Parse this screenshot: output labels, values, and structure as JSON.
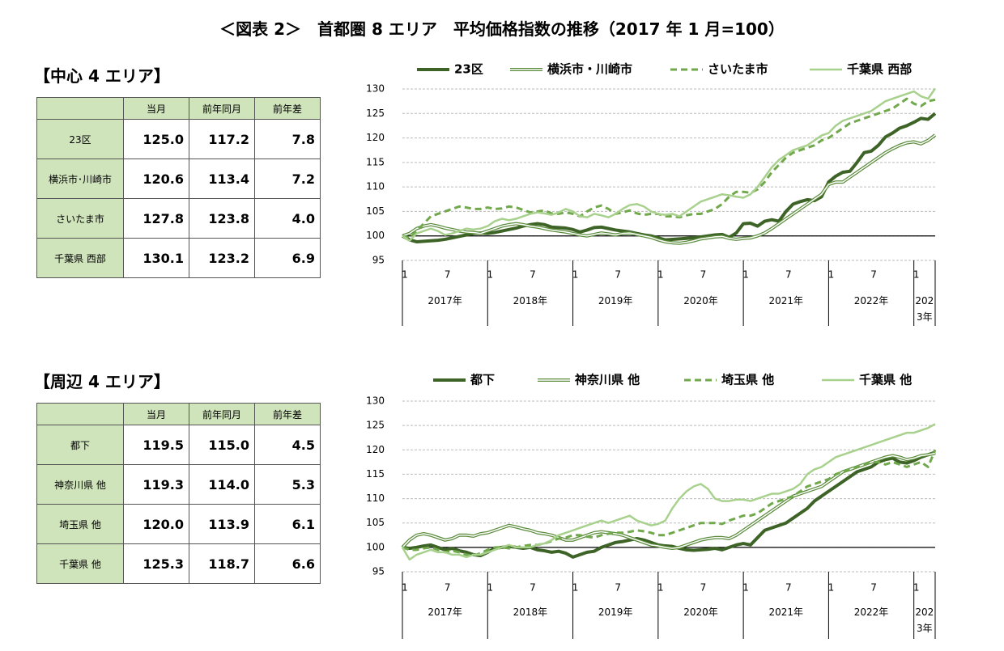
{
  "title": "＜図表 2＞　首都圏 8 エリア　平均価格指数の推移（2017 年 1 月=100）",
  "tables": [
    {
      "heading": "【中心 4 エリア】",
      "columns": [
        "当月",
        "前年同月",
        "前年差"
      ],
      "rows": [
        [
          "23区",
          "125.0",
          "117.2",
          "7.8"
        ],
        [
          "横浜市･川崎市",
          "120.6",
          "113.4",
          "7.2"
        ],
        [
          "さいたま市",
          "127.8",
          "123.8",
          "4.0"
        ],
        [
          "千葉県 西部",
          "130.1",
          "123.2",
          "6.9"
        ]
      ]
    },
    {
      "heading": "【周辺 4 エリア】",
      "columns": [
        "当月",
        "前年同月",
        "前年差"
      ],
      "rows": [
        [
          "都下",
          "119.5",
          "115.0",
          "4.5"
        ],
        [
          "神奈川県 他",
          "119.3",
          "114.0",
          "5.3"
        ],
        [
          "埼玉県 他",
          "120.0",
          "113.9",
          "6.1"
        ],
        [
          "千葉県 他",
          "125.3",
          "118.7",
          "6.6"
        ]
      ]
    }
  ],
  "chart_data": [
    {
      "type": "line",
      "ylim": [
        95,
        130
      ],
      "yticks": [
        95,
        100,
        105,
        110,
        115,
        120,
        125,
        130
      ],
      "grid": true,
      "baseline": 100,
      "categories": [
        "1",
        null,
        null,
        null,
        null,
        null,
        "7",
        null,
        null,
        null,
        null,
        null,
        "1",
        null,
        null,
        null,
        null,
        null,
        "7",
        null,
        null,
        null,
        null,
        null,
        "1",
        null,
        null,
        null,
        null,
        null,
        "7",
        null,
        null,
        null,
        null,
        null,
        "1",
        null,
        null,
        null,
        null,
        null,
        "7",
        null,
        null,
        null,
        null,
        null,
        "1",
        null,
        null,
        null,
        null,
        null,
        "7",
        null,
        null,
        null,
        null,
        null,
        "1",
        null,
        null,
        null,
        null,
        null,
        "7",
        null,
        null,
        null,
        null,
        null,
        "1",
        null,
        null,
        null
      ],
      "year_labels": [
        "2017年",
        "2018年",
        "2019年",
        "2020年",
        "2021年",
        "2022年",
        "2023年"
      ],
      "series": [
        {
          "name": "23区",
          "color": "#3d6326",
          "style": "solid",
          "values": [
            100,
            99.2,
            98.8,
            98.9,
            99.0,
            99.1,
            99.3,
            99.6,
            99.9,
            100.2,
            100.5,
            100.6,
            100.5,
            100.7,
            101.0,
            101.3,
            101.6,
            102.0,
            102.3,
            102.5,
            102.3,
            101.8,
            101.7,
            101.6,
            101.3,
            100.8,
            101.2,
            101.7,
            101.8,
            101.5,
            101.2,
            101.0,
            100.8,
            100.5,
            100.2,
            100.0,
            99.6,
            99.2,
            99.3,
            99.4,
            99.5,
            99.6,
            99.8,
            100.0,
            100.2,
            100.3,
            99.7,
            100.6,
            102.5,
            102.6,
            102.0,
            103.0,
            103.3,
            103.0,
            105.0,
            106.5,
            107.0,
            107.4,
            107.2,
            108.0,
            111.0,
            112.2,
            113.0,
            113.2,
            115.0,
            117.0,
            117.3,
            118.5,
            120.2,
            121.0,
            122.0,
            122.5,
            123.2,
            124.0,
            123.8,
            125.0
          ]
        },
        {
          "name": "横浜市・川崎市",
          "color": "#5b8c3c",
          "style": "double",
          "values": [
            100,
            100.5,
            101.5,
            102,
            102.3,
            102,
            101.6,
            101.3,
            101,
            100.8,
            100.7,
            100.5,
            101,
            101.5,
            102,
            102.3,
            102.5,
            102.3,
            102.0,
            101.8,
            101.5,
            101.2,
            101.0,
            100.8,
            100.5,
            100.2,
            100.0,
            100.3,
            100.6,
            100.4,
            100.2,
            100.5,
            100.6,
            100.3,
            100.0,
            99.7,
            99.2,
            98.8,
            98.6,
            98.5,
            98.7,
            99.0,
            99.4,
            99.6,
            99.8,
            99.9,
            99.5,
            99.3,
            99.5,
            99.6,
            100.0,
            100.6,
            101.5,
            102.5,
            103.5,
            104.5,
            105.5,
            106.5,
            107.5,
            108.5,
            110.5,
            111.0,
            111.0,
            112.0,
            113.0,
            114.0,
            115.0,
            116.0,
            117.0,
            117.8,
            118.5,
            119.0,
            119.2,
            118.8,
            119.5,
            120.6
          ]
        },
        {
          "name": "さいたま市",
          "color": "#70a84b",
          "style": "dashed",
          "values": [
            100,
            99.5,
            101,
            102.5,
            104,
            104.5,
            105,
            105.5,
            106,
            105.8,
            105.5,
            105.5,
            105.8,
            105.5,
            105.6,
            106,
            105.8,
            105.3,
            104.8,
            105,
            105.2,
            104.6,
            104.5,
            104.8,
            104.5,
            104.0,
            105.0,
            105.8,
            106.2,
            105.5,
            104.5,
            104.8,
            105.2,
            104.6,
            104.3,
            104.5,
            104.5,
            104.0,
            104.0,
            103.8,
            104.2,
            104.5,
            104.5,
            105.0,
            105.5,
            106.5,
            108.0,
            109.0,
            109.0,
            108.8,
            109.5,
            111.0,
            113.0,
            114.5,
            116.0,
            117.0,
            117.5,
            118.0,
            118.5,
            119.5,
            120.0,
            121.0,
            122.0,
            123.0,
            123.5,
            124.0,
            124.5,
            125.0,
            125.5,
            126.0,
            127.0,
            128.0,
            127.0,
            126.5,
            127.5,
            127.8
          ]
        },
        {
          "name": "千葉県 西部",
          "color": "#a9d18e",
          "style": "solid",
          "values": [
            100,
            99.0,
            100.5,
            101.0,
            101.5,
            101.0,
            100.2,
            100.5,
            101.0,
            101.5,
            101.3,
            101.5,
            102.0,
            103.0,
            103.5,
            103.2,
            103.5,
            104.0,
            104.5,
            104.8,
            104.6,
            104.3,
            104.8,
            105.5,
            105.0,
            104.0,
            103.8,
            104.5,
            104.2,
            103.8,
            104.5,
            105.5,
            106.3,
            106.5,
            106.0,
            105.0,
            104.5,
            104.3,
            104.5,
            104.0,
            105.0,
            106.0,
            107.0,
            107.5,
            108.0,
            108.5,
            108.3,
            108.0,
            107.8,
            108.5,
            110.0,
            112.0,
            114.0,
            115.5,
            116.5,
            117.5,
            118.0,
            118.5,
            119.5,
            120.5,
            121.0,
            122.5,
            123.5,
            124.0,
            124.5,
            125.0,
            125.5,
            126.5,
            127.5,
            128.0,
            128.5,
            129.0,
            129.5,
            128.5,
            128.0,
            130.1
          ]
        }
      ]
    },
    {
      "type": "line",
      "ylim": [
        95,
        130
      ],
      "yticks": [
        95,
        100,
        105,
        110,
        115,
        120,
        125,
        130
      ],
      "grid": true,
      "baseline": 100,
      "categories": [
        "1",
        null,
        null,
        null,
        null,
        null,
        "7",
        null,
        null,
        null,
        null,
        null,
        "1",
        null,
        null,
        null,
        null,
        null,
        "7",
        null,
        null,
        null,
        null,
        null,
        "1",
        null,
        null,
        null,
        null,
        null,
        "7",
        null,
        null,
        null,
        null,
        null,
        "1",
        null,
        null,
        null,
        null,
        null,
        "7",
        null,
        null,
        null,
        null,
        null,
        "1",
        null,
        null,
        null,
        null,
        null,
        "7",
        null,
        null,
        null,
        null,
        null,
        "1",
        null,
        null,
        null,
        null,
        null,
        "7",
        null,
        null,
        null,
        null,
        null,
        "1",
        null,
        null,
        null
      ],
      "year_labels": [
        "2017年",
        "2018年",
        "2019年",
        "2020年",
        "2021年",
        "2022年",
        "2023年"
      ],
      "series": [
        {
          "name": "都下",
          "color": "#3d6326",
          "style": "solid",
          "values": [
            100,
            99.8,
            100.0,
            100.3,
            100.5,
            100.0,
            99.5,
            99.8,
            99.3,
            99.0,
            98.5,
            98.3,
            99.0,
            99.8,
            100.0,
            100.2,
            100.0,
            99.8,
            100.0,
            99.5,
            99.3,
            99.0,
            99.2,
            98.8,
            98.0,
            98.5,
            99.0,
            99.2,
            100.0,
            100.5,
            101.0,
            101.2,
            101.5,
            101.8,
            101.5,
            101.0,
            100.5,
            100.3,
            100.2,
            99.8,
            99.5,
            99.4,
            99.5,
            99.6,
            99.8,
            99.5,
            100.0,
            100.5,
            100.8,
            100.5,
            102.0,
            103.5,
            104.0,
            104.5,
            105.0,
            106.0,
            107.0,
            108.0,
            109.5,
            110.5,
            111.5,
            112.5,
            113.5,
            114.5,
            115.5,
            116.0,
            116.5,
            117.5,
            118.0,
            118.3,
            117.5,
            117.3,
            117.8,
            118.5,
            119.0,
            119.5
          ]
        },
        {
          "name": "神奈川県 他",
          "color": "#5b8c3c",
          "style": "double",
          "values": [
            100,
            101.5,
            102.5,
            102.8,
            102.5,
            102.0,
            101.5,
            101.8,
            102.5,
            102.5,
            102.3,
            102.8,
            103.0,
            103.5,
            104.0,
            104.5,
            104.2,
            103.8,
            103.5,
            103.0,
            102.8,
            102.5,
            102.0,
            101.5,
            101.5,
            102.0,
            102.5,
            103.0,
            103.2,
            103.0,
            102.8,
            102.5,
            102.0,
            101.5,
            101.0,
            100.5,
            100.3,
            100.0,
            99.8,
            100.0,
            100.5,
            101.0,
            101.5,
            101.8,
            102.0,
            102.0,
            101.8,
            102.5,
            103.5,
            104.5,
            105.5,
            106.5,
            107.5,
            108.5,
            109.5,
            110.5,
            111.0,
            111.5,
            112.0,
            112.5,
            113.5,
            114.5,
            115.5,
            116.0,
            116.5,
            117.0,
            117.5,
            118.0,
            118.5,
            118.8,
            118.5,
            118.0,
            118.3,
            118.8,
            119.0,
            119.3
          ]
        },
        {
          "name": "埼玉県 他",
          "color": "#70a84b",
          "style": "dashed",
          "values": [
            100,
            99.5,
            99.5,
            99.8,
            100.0,
            99.5,
            99.0,
            99.3,
            99.0,
            98.5,
            98.3,
            98.8,
            99.5,
            100.0,
            100.0,
            99.8,
            100.0,
            100.3,
            100.5,
            100.5,
            100.8,
            101.3,
            101.8,
            102.0,
            102.5,
            102.5,
            102.2,
            102.0,
            102.5,
            102.8,
            103.0,
            103.0,
            103.2,
            103.5,
            103.3,
            103.0,
            102.5,
            102.5,
            103.0,
            103.5,
            104.0,
            104.5,
            105.0,
            105.0,
            105.0,
            104.8,
            105.5,
            106.0,
            106.5,
            106.5,
            107.0,
            108.0,
            109.0,
            109.5,
            110.0,
            110.5,
            111.5,
            112.5,
            113.0,
            113.5,
            114.0,
            115.0,
            115.5,
            116.0,
            116.5,
            117.0,
            117.5,
            117.5,
            117.0,
            117.5,
            117.0,
            116.5,
            117.0,
            117.5,
            116.5,
            120.0
          ]
        },
        {
          "name": "千葉県 他",
          "color": "#a9d18e",
          "style": "solid",
          "values": [
            100,
            97.5,
            98.5,
            99.0,
            99.5,
            99.0,
            99.0,
            98.5,
            98.5,
            98.0,
            98.5,
            98.5,
            99.0,
            99.5,
            100.0,
            100.5,
            100.0,
            100.0,
            100.0,
            100.5,
            100.8,
            101.5,
            102.5,
            103.0,
            103.5,
            104.0,
            104.5,
            105.0,
            105.5,
            105.0,
            105.5,
            106.0,
            106.5,
            105.5,
            105.0,
            104.5,
            104.8,
            105.5,
            108.0,
            110.0,
            111.5,
            112.5,
            113.0,
            112.0,
            110.0,
            109.5,
            109.5,
            109.8,
            109.8,
            109.5,
            110.0,
            110.5,
            111.0,
            111.0,
            111.5,
            112.0,
            113.0,
            115.0,
            116.0,
            116.5,
            117.5,
            118.5,
            119.0,
            119.5,
            120.0,
            120.5,
            121.0,
            121.5,
            122.0,
            122.5,
            123.0,
            123.5,
            123.5,
            124.0,
            124.5,
            125.3
          ]
        }
      ]
    }
  ]
}
